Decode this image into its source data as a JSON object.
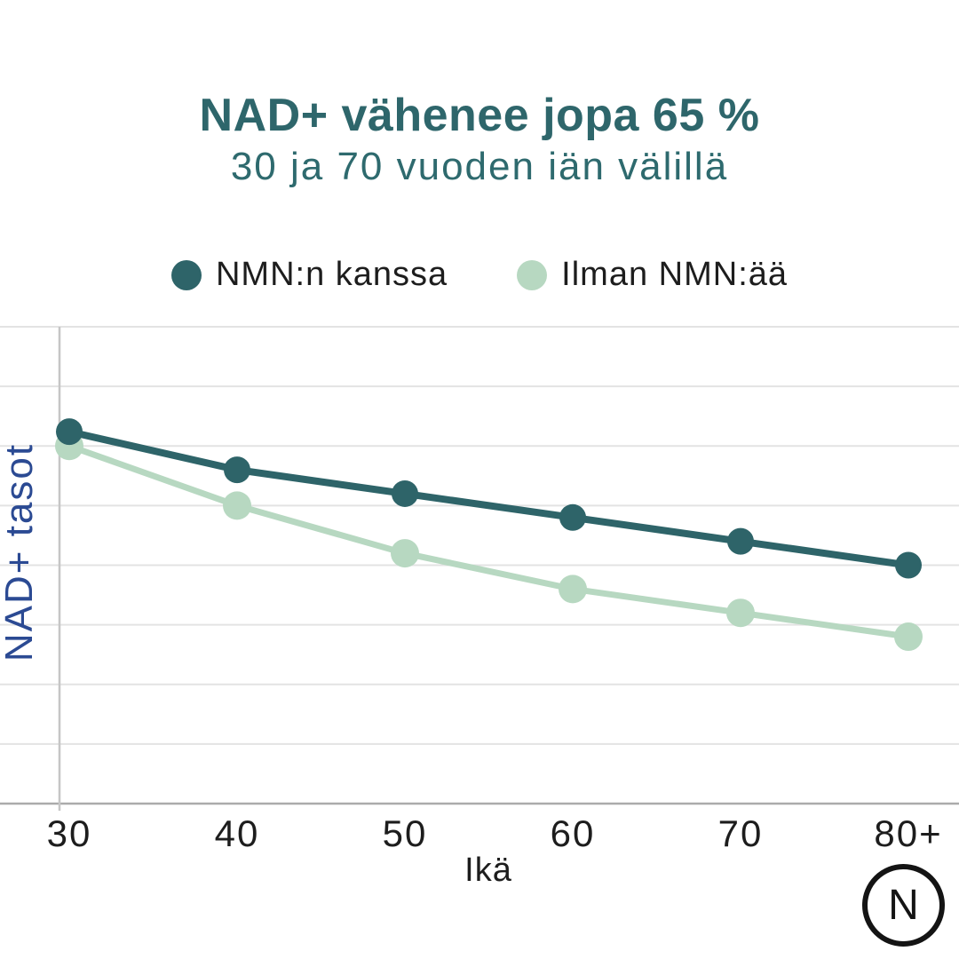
{
  "header": {
    "title": "NAD+ vähenee jopa 65 %",
    "subtitle": "30 ja 70 vuoden iän välillä"
  },
  "legend": {
    "items": [
      {
        "label": "NMN:n kanssa",
        "color": "#2e6469"
      },
      {
        "label": "Ilman NMN:ää",
        "color": "#b7d8c1"
      }
    ]
  },
  "chart_data": {
    "type": "line",
    "title": "NAD+ vähenee jopa 65 %",
    "subtitle": "30 ja 70 vuoden iän välillä",
    "categories": [
      "30",
      "40",
      "50",
      "60",
      "70",
      "80+"
    ],
    "series": [
      {
        "name": "NMN:n kanssa",
        "color": "#2e6469",
        "values": [
          78,
          70,
          65,
          60,
          55,
          50
        ]
      },
      {
        "name": "Ilman NMN:ää",
        "color": "#b7d8c1",
        "values": [
          75,
          62.5,
          52.5,
          45,
          40,
          35
        ]
      }
    ],
    "xlabel": "Ikä",
    "ylabel": "NAD+ tasot",
    "ylim": [
      0,
      100
    ],
    "grid": true,
    "gridline_step": 12.5,
    "legend_position": "top"
  },
  "logo": {
    "letter": "N"
  },
  "colors": {
    "brand_teal": "#2e666b",
    "subtitle_teal": "#2e6a6e",
    "series_with_nmn": "#2e6469",
    "series_without_nmn": "#b7d8c1",
    "ylabel_blue": "#2b4a93",
    "text_dark": "#1d1d1d",
    "gridline": "#e3e3e3",
    "axis_line": "#c6c6c6",
    "bottom_axis_line": "#ababab",
    "logo_black": "#141414"
  }
}
